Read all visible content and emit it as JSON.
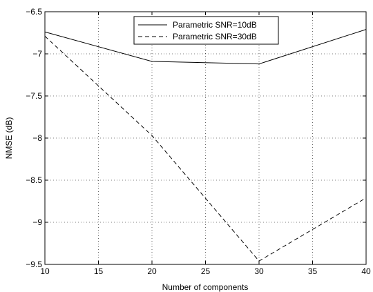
{
  "chart_data": {
    "type": "line",
    "title": "",
    "xlabel": "Number of components",
    "ylabel": "NMSE (dB)",
    "xlim": [
      10,
      40
    ],
    "ylim": [
      -9.5,
      -6.5
    ],
    "xticks": [
      10,
      15,
      20,
      25,
      30,
      35,
      40
    ],
    "yticks": [
      -6.5,
      -7,
      -7.5,
      -8,
      -8.5,
      -9,
      -9.5
    ],
    "xtick_labels": [
      "10",
      "15",
      "20",
      "25",
      "30",
      "35",
      "40"
    ],
    "ytick_labels": [
      "−6.5",
      "−7",
      "−7.5",
      "−8",
      "−8.5",
      "−9",
      "−9.5"
    ],
    "grid": true,
    "legend_position": "top-center",
    "x": [
      10,
      20,
      30,
      40
    ],
    "series": [
      {
        "name": "Parametric SNR=10dB",
        "values": [
          -6.74,
          -7.09,
          -7.12,
          -6.71
        ],
        "dash": "solid",
        "color": "#000000"
      },
      {
        "name": "Parametric SNR=30dB",
        "values": [
          -6.79,
          -7.97,
          -9.46,
          -8.71
        ],
        "dash": "dashed",
        "color": "#000000"
      }
    ]
  }
}
